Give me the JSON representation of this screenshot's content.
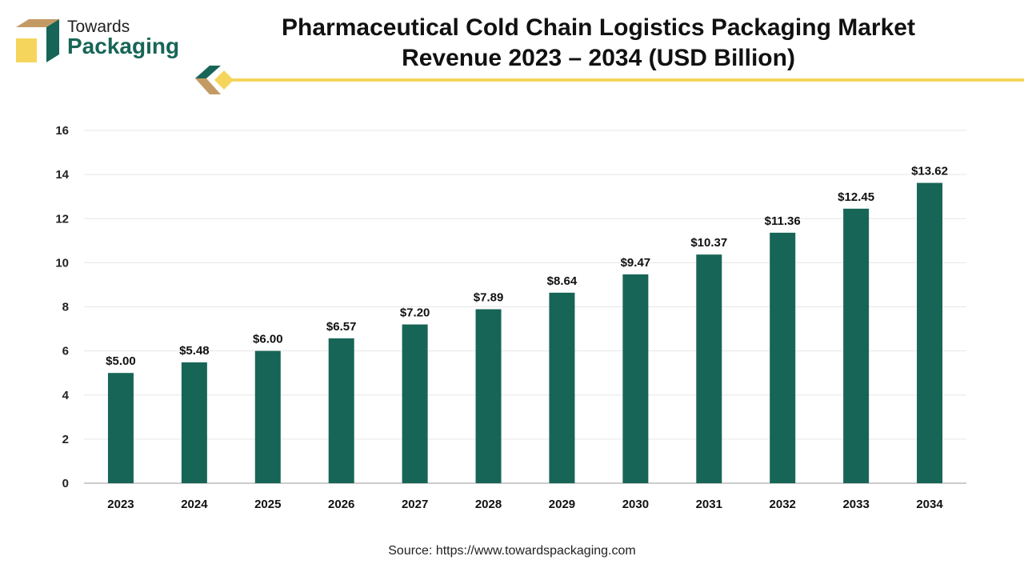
{
  "logo": {
    "line1": "Towards",
    "line2": "Packaging"
  },
  "colors": {
    "bar": "#176556",
    "accent_yellow": "#F6D55C",
    "accent_tan": "#C49A64"
  },
  "source": "Source: https://www.towardspackaging.com",
  "chart_data": {
    "type": "bar",
    "title": "Pharmaceutical Cold Chain Logistics Packaging Market Revenue 2023 – 2034 (USD Billion)",
    "categories": [
      "2023",
      "2024",
      "2025",
      "2026",
      "2027",
      "2028",
      "2029",
      "2030",
      "2031",
      "2032",
      "2033",
      "2034"
    ],
    "values": [
      5.0,
      5.48,
      6.0,
      6.57,
      7.2,
      7.89,
      8.64,
      9.47,
      10.37,
      11.36,
      12.45,
      13.62
    ],
    "data_labels": [
      "$5.00",
      "$5.48",
      "$6.00",
      "$6.57",
      "$7.20",
      "$7.89",
      "$8.64",
      "$9.47",
      "$10.37",
      "$11.36",
      "$12.45",
      "$13.62"
    ],
    "xlabel": "",
    "ylabel": "",
    "ylim": [
      0,
      16
    ],
    "yticks": [
      0,
      2,
      4,
      6,
      8,
      10,
      12,
      14,
      16
    ],
    "grid": true,
    "legend": "none"
  }
}
